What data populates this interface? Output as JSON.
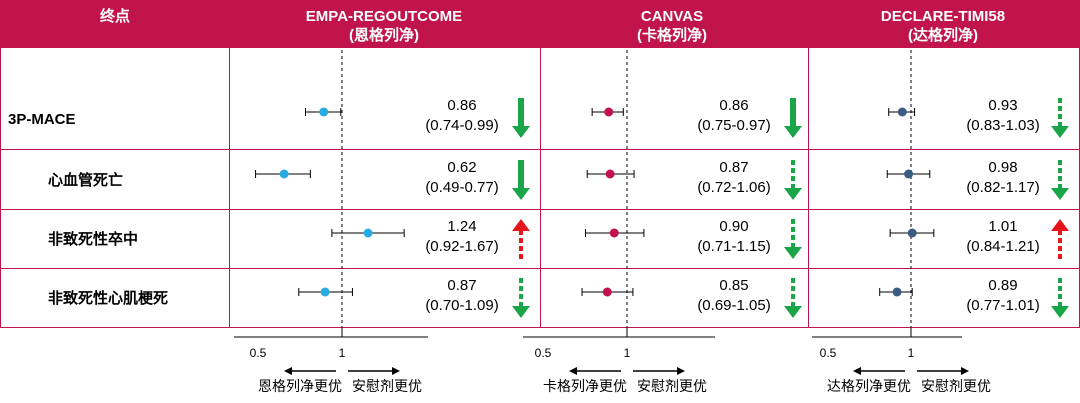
{
  "header": {
    "endpoint_label": "终点",
    "trials": [
      {
        "name": "EMPA-REGOUTCOME",
        "subtitle": "(恩格列净)"
      },
      {
        "name": "CANVAS",
        "subtitle": "(卡格列净)"
      },
      {
        "name": "DECLARE-TIMI58",
        "subtitle": "(达格列净)"
      }
    ]
  },
  "rows": [
    "3P-MACE",
    "心血管死亡",
    "非致死性卒中",
    "非致死性心肌梗死"
  ],
  "axis": {
    "ticks": [
      "0.5",
      "1"
    ],
    "tick_values": [
      0.5,
      1
    ],
    "reference": 1
  },
  "favors": [
    {
      "left": "恩格列净更优",
      "right": "安慰剂更优"
    },
    {
      "left": "卡格列净更优",
      "right": "安慰剂更优"
    },
    {
      "left": "达格列净更优",
      "right": "安慰剂更优"
    }
  ],
  "colors": {
    "header_bg": "#c0144b",
    "empa_marker": "#29abe2",
    "canvas_marker": "#c0144b",
    "declare_marker": "#3b5a84",
    "arrow_green": "#1aa548",
    "arrow_red": "#e8141c"
  },
  "chart_data": [
    {
      "type": "forest",
      "title": "EMPA-REGOUTCOME",
      "subtitle": "(恩格列净)",
      "marker_color": "#29abe2",
      "reference": 1,
      "categories": [
        "3P-MACE",
        "心血管死亡",
        "非致死性卒中",
        "非致死性心肌梗死"
      ],
      "hr": [
        0.86,
        0.62,
        1.24,
        0.87
      ],
      "lower": [
        0.74,
        0.49,
        0.92,
        0.7
      ],
      "upper": [
        0.99,
        0.77,
        1.67,
        1.09
      ],
      "labels": [
        {
          "hr": "0.86",
          "ci": "(0.74-0.99)"
        },
        {
          "hr": "0.62",
          "ci": "(0.49-0.77)"
        },
        {
          "hr": "1.24",
          "ci": "(0.92-1.67)"
        },
        {
          "hr": "0.87",
          "ci": "(0.70-1.09)"
        }
      ],
      "arrows": [
        {
          "direction": "down",
          "style": "solid",
          "color": "green"
        },
        {
          "direction": "down",
          "style": "solid",
          "color": "green"
        },
        {
          "direction": "up",
          "style": "dashed",
          "color": "red"
        },
        {
          "direction": "down",
          "style": "dashed",
          "color": "green"
        }
      ]
    },
    {
      "type": "forest",
      "title": "CANVAS",
      "subtitle": "(卡格列净)",
      "marker_color": "#c0144b",
      "reference": 1,
      "categories": [
        "3P-MACE",
        "心血管死亡",
        "非致死性卒中",
        "非致死性心肌梗死"
      ],
      "hr": [
        0.86,
        0.87,
        0.9,
        0.85
      ],
      "lower": [
        0.75,
        0.72,
        0.71,
        0.69
      ],
      "upper": [
        0.97,
        1.06,
        1.15,
        1.05
      ],
      "labels": [
        {
          "hr": "0.86",
          "ci": "(0.75-0.97)"
        },
        {
          "hr": "0.87",
          "ci": "(0.72-1.06)"
        },
        {
          "hr": "0.90",
          "ci": "(0.71-1.15)"
        },
        {
          "hr": "0.85",
          "ci": "(0.69-1.05)"
        }
      ],
      "arrows": [
        {
          "direction": "down",
          "style": "solid",
          "color": "green"
        },
        {
          "direction": "down",
          "style": "dashed",
          "color": "green"
        },
        {
          "direction": "down",
          "style": "dashed",
          "color": "green"
        },
        {
          "direction": "down",
          "style": "dashed",
          "color": "green"
        }
      ]
    },
    {
      "type": "forest",
      "title": "DECLARE-TIMI58",
      "subtitle": "(达格列净)",
      "marker_color": "#3b5a84",
      "reference": 1,
      "categories": [
        "3P-MACE",
        "心血管死亡",
        "非致死性卒中",
        "非致死性心肌梗死"
      ],
      "hr": [
        0.93,
        0.98,
        1.01,
        0.89
      ],
      "lower": [
        0.83,
        0.82,
        0.84,
        0.77
      ],
      "upper": [
        1.03,
        1.17,
        1.21,
        1.01
      ],
      "labels": [
        {
          "hr": "0.93",
          "ci": "(0.83-1.03)"
        },
        {
          "hr": "0.98",
          "ci": "(0.82-1.17)"
        },
        {
          "hr": "1.01",
          "ci": "(0.84-1.21)"
        },
        {
          "hr": "0.89",
          "ci": "(0.77-1.01)"
        }
      ],
      "arrows": [
        {
          "direction": "down",
          "style": "dashed",
          "color": "green"
        },
        {
          "direction": "down",
          "style": "dashed",
          "color": "green"
        },
        {
          "direction": "up",
          "style": "dashed",
          "color": "red"
        },
        {
          "direction": "down",
          "style": "dashed",
          "color": "green"
        }
      ]
    }
  ]
}
